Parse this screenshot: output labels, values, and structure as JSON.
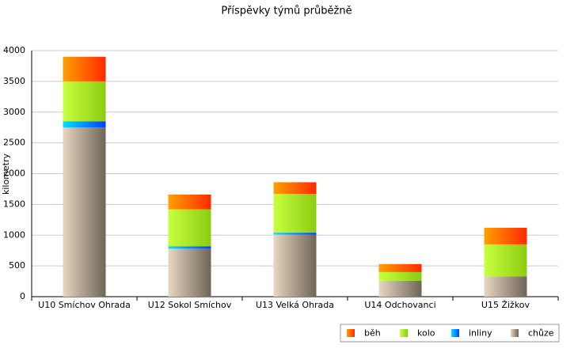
{
  "chart_data": {
    "type": "bar",
    "stacked": true,
    "title": "Příspěvky týmů průběžně",
    "y_label": "kilometry",
    "categories": [
      "U10 Smíchov Ohrada",
      "U12 Sokol Smíchov",
      "U13 Velká Ohrada",
      "U14 Odchovanci",
      "U15 Žižkov"
    ],
    "series": [
      {
        "name": "běh",
        "color": "#ff2a00",
        "values": [
          400,
          240,
          190,
          130,
          270
        ]
      },
      {
        "name": "kolo",
        "color": "#8ccc10",
        "values": [
          650,
          600,
          630,
          140,
          520
        ]
      },
      {
        "name": "inliny",
        "color": "#0040ff",
        "values": [
          100,
          40,
          30,
          0,
          0
        ]
      },
      {
        "name": "chůze",
        "color": "#6e6558",
        "values": [
          2750,
          780,
          1010,
          260,
          330
        ]
      }
    ],
    "ylim": [
      0,
      4000
    ],
    "yticks": [
      0,
      500,
      1000,
      1500,
      2000,
      2500,
      3000,
      3500,
      4000
    ],
    "grid": true,
    "legend": "bottom-right"
  }
}
